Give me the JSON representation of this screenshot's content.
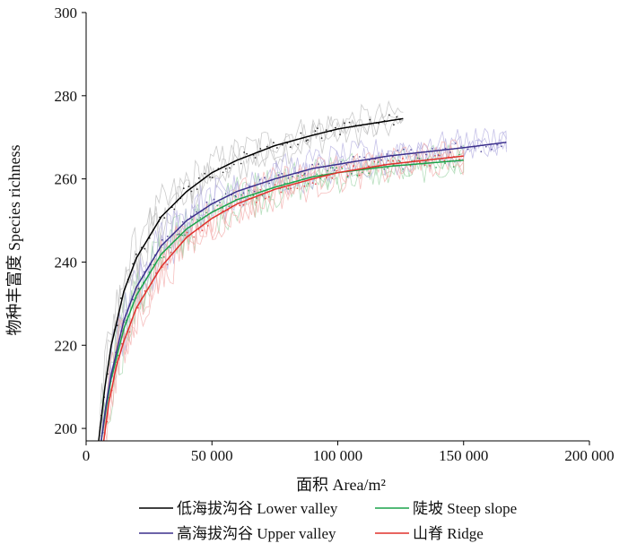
{
  "chart_data": {
    "type": "line",
    "xlabel": "面积 Area/m²",
    "ylabel": "物种丰富度 Species richness",
    "xlim": [
      0,
      200000
    ],
    "ylim": [
      197,
      300
    ],
    "xticks": [
      0,
      50000,
      100000,
      150000,
      200000
    ],
    "xtick_labels": [
      "0",
      "50 000",
      "100 000",
      "150 000",
      "200 000"
    ],
    "yticks": [
      200,
      220,
      240,
      260,
      280,
      300
    ],
    "ytick_labels": [
      "200",
      "220",
      "240",
      "260",
      "280",
      "300"
    ],
    "legend_position": "bottom",
    "series": [
      {
        "name": "低海拔沟谷 Lower valley",
        "color": "#000000",
        "x": [
          5000,
          7500,
          10000,
          15000,
          20000,
          30000,
          40000,
          50000,
          60000,
          75000,
          90000,
          100000,
          110000,
          126000
        ],
        "y": [
          197,
          210,
          220,
          233,
          241,
          251,
          257,
          261.5,
          264.5,
          268,
          270.5,
          272,
          273,
          274.5
        ]
      },
      {
        "name": "陡坡 Steep slope",
        "color": "#1aa34a",
        "x": [
          6000,
          8000,
          10000,
          15000,
          20000,
          30000,
          40000,
          50000,
          60000,
          75000,
          90000,
          100000,
          120000,
          150000
        ],
        "y": [
          197,
          205,
          212,
          224,
          232,
          242,
          248,
          252,
          255,
          258,
          260.5,
          261.5,
          263,
          264.5
        ]
      },
      {
        "name": "高海拔沟谷 Upper valley",
        "color": "#3b2f8c",
        "x": [
          6000,
          8000,
          10000,
          15000,
          20000,
          30000,
          40000,
          50000,
          60000,
          75000,
          90000,
          100000,
          120000,
          150000,
          167000
        ],
        "y": [
          197,
          206,
          213,
          226,
          234,
          244,
          250,
          254,
          257,
          260,
          262.5,
          263.5,
          265.5,
          267.5,
          268.8
        ]
      },
      {
        "name": "山脊 Ridge",
        "color": "#e0302c",
        "x": [
          7000,
          9000,
          12000,
          15000,
          20000,
          30000,
          40000,
          50000,
          60000,
          75000,
          90000,
          100000,
          120000,
          150000
        ],
        "y": [
          197,
          206,
          215,
          221,
          229,
          239,
          246,
          250.5,
          254,
          257.5,
          260,
          261.5,
          263.5,
          265.5
        ]
      }
    ]
  }
}
